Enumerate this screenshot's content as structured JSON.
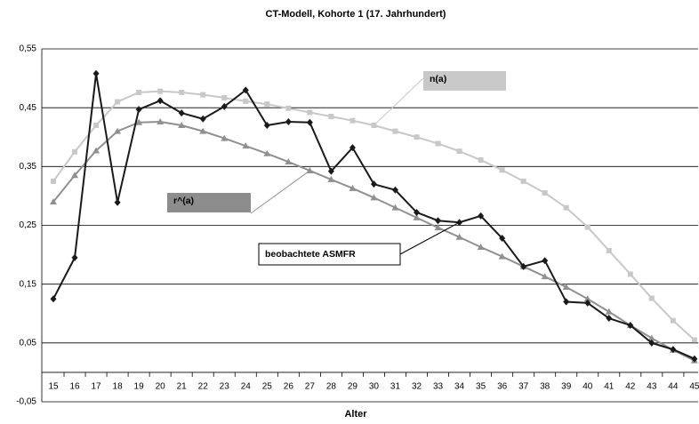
{
  "chart_data": {
    "type": "line",
    "title": "CT-Modell, Kohorte 1 (17. Jahrhundert)",
    "x_label": "Alter",
    "categories": [
      "15",
      "16",
      "17",
      "18",
      "19",
      "20",
      "21",
      "22",
      "23",
      "24",
      "25",
      "26",
      "27",
      "28",
      "29",
      "30",
      "31",
      "32",
      "33",
      "34",
      "35",
      "36",
      "37",
      "38",
      "39",
      "40",
      "41",
      "42",
      "43",
      "44",
      "45"
    ],
    "ylim": [
      -0.05,
      0.55
    ],
    "yticks": [
      {
        "value": -0.05,
        "label": "-0,05"
      },
      {
        "value": 0.05,
        "label": "0,05"
      },
      {
        "value": 0.15,
        "label": "0,15"
      },
      {
        "value": 0.25,
        "label": "0,25"
      },
      {
        "value": 0.35,
        "label": "0,35"
      },
      {
        "value": 0.45,
        "label": "0,45"
      },
      {
        "value": 0.55,
        "label": "0,55"
      }
    ],
    "grid": true,
    "series": [
      {
        "name": "n(a)",
        "color": "#c8c8c8",
        "marker": "square",
        "values": [
          0.325,
          0.375,
          0.42,
          0.46,
          0.476,
          0.478,
          0.476,
          0.472,
          0.467,
          0.461,
          0.456,
          0.449,
          0.442,
          0.435,
          0.428,
          0.42,
          0.41,
          0.4,
          0.389,
          0.376,
          0.361,
          0.344,
          0.325,
          0.305,
          0.28,
          0.247,
          0.207,
          0.167,
          0.126,
          0.088,
          0.055
        ]
      },
      {
        "name": "r^(a)",
        "color": "#909090",
        "marker": "triangle",
        "values": [
          0.29,
          0.335,
          0.377,
          0.41,
          0.425,
          0.426,
          0.42,
          0.41,
          0.398,
          0.385,
          0.372,
          0.358,
          0.343,
          0.328,
          0.313,
          0.297,
          0.28,
          0.263,
          0.246,
          0.23,
          0.213,
          0.197,
          0.18,
          0.163,
          0.145,
          0.125,
          0.103,
          0.08,
          0.058,
          0.038,
          0.02
        ]
      },
      {
        "name": "beobachtete ASMFR",
        "color": "#1a1a1a",
        "marker": "diamond",
        "values": [
          0.125,
          0.195,
          0.508,
          0.289,
          0.447,
          0.462,
          0.441,
          0.431,
          0.452,
          0.48,
          0.42,
          0.426,
          0.425,
          0.342,
          0.382,
          0.32,
          0.31,
          0.272,
          0.258,
          0.255,
          0.266,
          0.228,
          0.18,
          0.19,
          0.12,
          0.118,
          0.092,
          0.08,
          0.05,
          0.039,
          0.023
        ]
      }
    ]
  }
}
